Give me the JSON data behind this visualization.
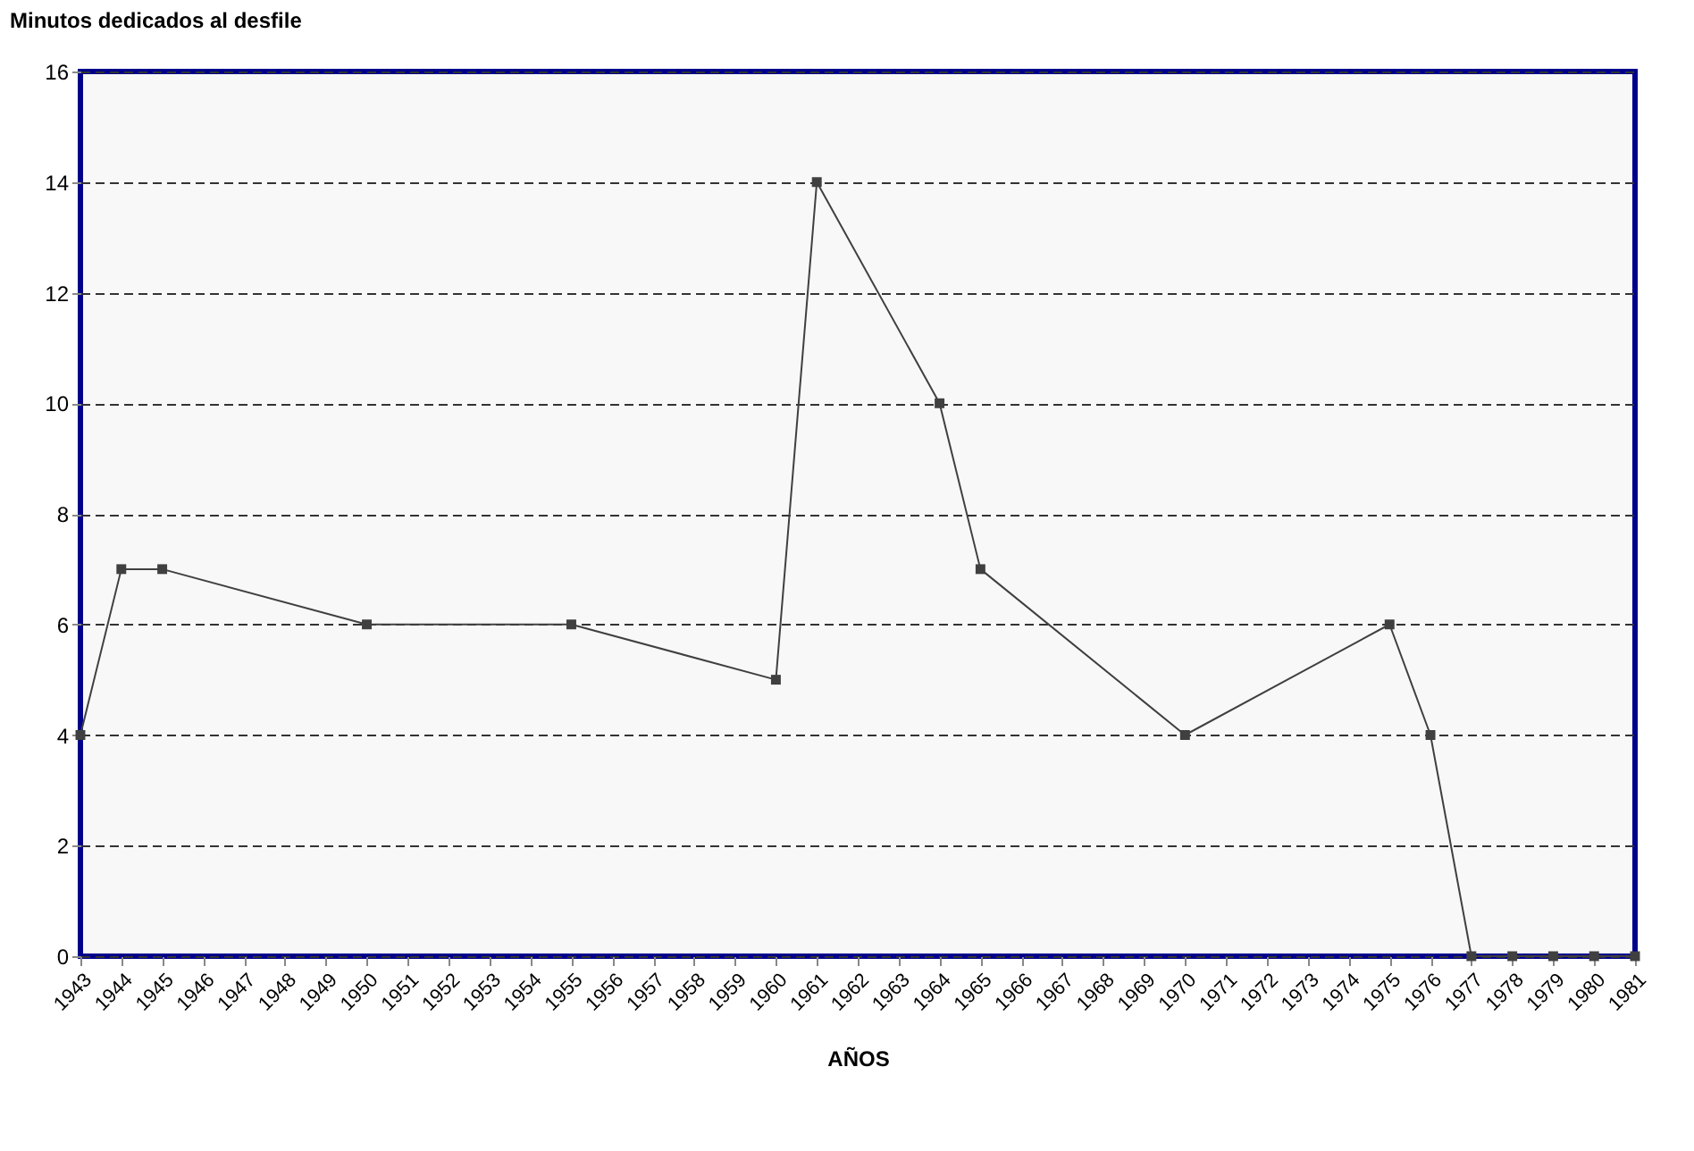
{
  "chart_data": {
    "type": "line",
    "ylabel": "Minutos dedicados al desfile",
    "xlabel": "AÑOS",
    "x": [
      1943,
      1944,
      1945,
      1950,
      1955,
      1960,
      1961,
      1964,
      1965,
      1970,
      1975,
      1976,
      1977,
      1978,
      1979,
      1980,
      1981
    ],
    "series": [
      {
        "color": "#404040",
        "values": [
          4,
          7,
          7,
          6,
          6,
          5,
          14,
          10,
          7,
          4,
          6,
          4,
          0,
          0,
          0,
          0,
          0
        ]
      }
    ],
    "xlim": [
      1943,
      1981
    ],
    "xticks": [
      1943,
      1944,
      1945,
      1946,
      1947,
      1948,
      1949,
      1950,
      1951,
      1952,
      1953,
      1954,
      1955,
      1956,
      1957,
      1958,
      1959,
      1960,
      1961,
      1962,
      1963,
      1964,
      1965,
      1966,
      1967,
      1968,
      1969,
      1970,
      1971,
      1972,
      1973,
      1974,
      1975,
      1976,
      1977,
      1978,
      1979,
      1980,
      1981
    ],
    "ylim": [
      0,
      16
    ],
    "yticks": [
      0,
      2,
      4,
      6,
      8,
      10,
      12,
      14,
      16
    ],
    "grid": "y",
    "marker": "square",
    "line_style": "solid"
  }
}
